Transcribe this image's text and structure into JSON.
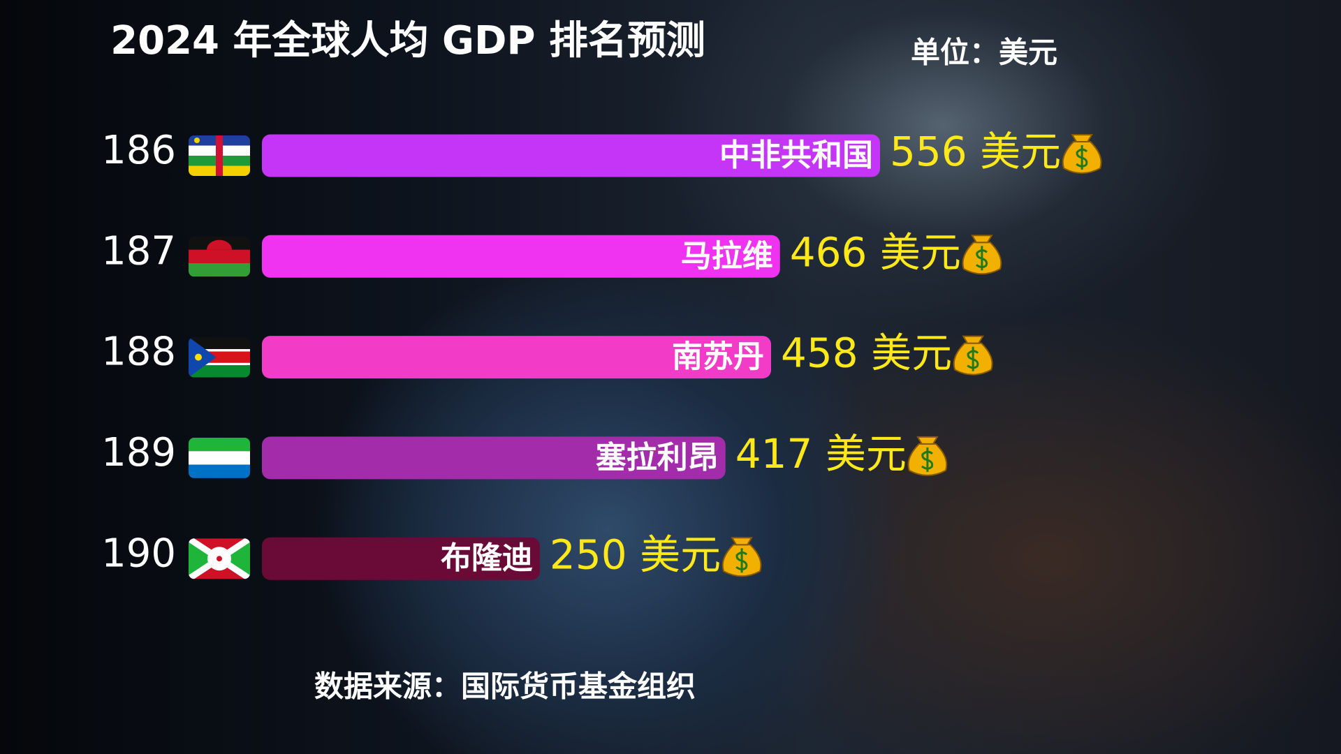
{
  "chart_data": {
    "type": "bar",
    "title": "2024 年全球人均 GDP 排名预测",
    "subtitle": "单位：美元",
    "source": "数据来源：国际货币基金组织",
    "ranks": [
      186,
      187,
      188,
      189,
      190
    ],
    "categories": [
      "中非共和国",
      "马拉维",
      "南苏丹",
      "塞拉利昂",
      "布隆迪"
    ],
    "values": [
      556,
      466,
      458,
      417,
      250
    ],
    "value_labels": [
      "556 美元",
      "466 美元",
      "458 美元",
      "417 美元",
      "250 美元"
    ],
    "colors": [
      "#c535f7",
      "#f033f0",
      "#f23bc6",
      "#a22caa",
      "#6a0a36"
    ],
    "value_label_color": "#ffe81a"
  }
}
